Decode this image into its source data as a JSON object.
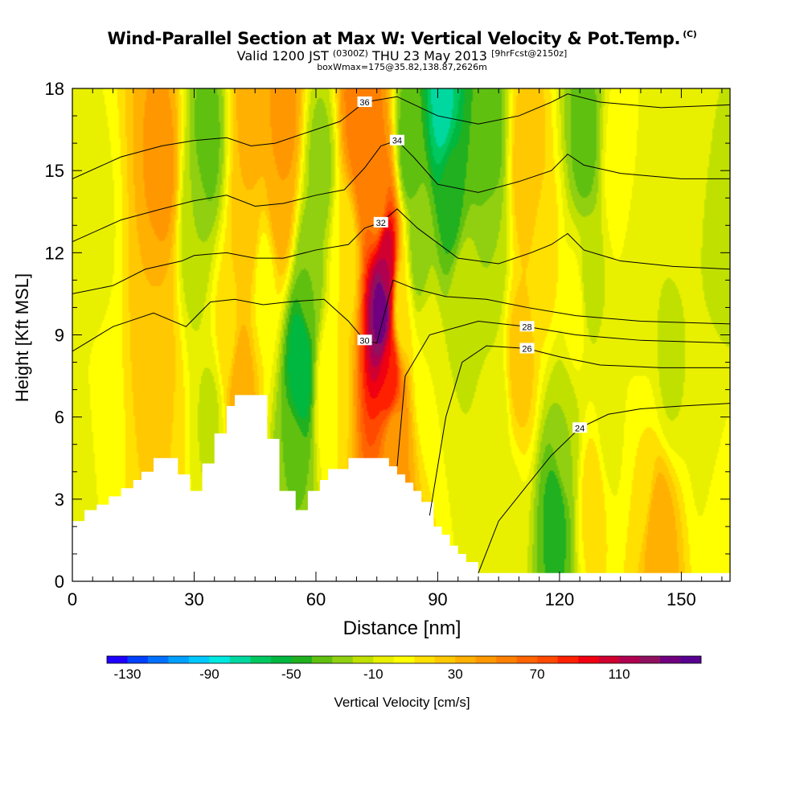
{
  "title": "Wind-Parallel Section at Max W: Vertical Velocity & Pot.Temp.",
  "title_mark": "(C)",
  "subtitle_pre": "Valid 1200 JST",
  "subtitle_small": "(0300Z)",
  "subtitle_mid": "THU 23 May 2013",
  "subtitle_tail": "[9hrFcst@2150z]",
  "subtitle2": "boxWmax=175@35.82,138.87,2626m",
  "chart_data": {
    "type": "heatmap",
    "xlabel": "Distance [nm]",
    "ylabel": "Height [Kft MSL]",
    "xlim": [
      0,
      162
    ],
    "ylim": [
      0,
      18
    ],
    "x_ticks": [
      0,
      30,
      60,
      90,
      120,
      150
    ],
    "y_ticks": [
      0,
      3,
      6,
      9,
      12,
      15,
      18
    ],
    "colorbar": {
      "label": "Vertical Velocity [cm/s]",
      "min": -140,
      "max": 150,
      "step": 10,
      "tick_labels": [
        -130,
        -90,
        -50,
        -10,
        30,
        70,
        110
      ],
      "colors": [
        "#1f00ff",
        "#0040ff",
        "#0070ff",
        "#00a0ff",
        "#00c8ff",
        "#00e8e0",
        "#00d8a0",
        "#00c860",
        "#00b840",
        "#20b020",
        "#60c010",
        "#90d010",
        "#c0e000",
        "#e8f000",
        "#ffff00",
        "#ffe000",
        "#ffc800",
        "#ffb000",
        "#ff9800",
        "#ff8000",
        "#ff6400",
        "#ff4800",
        "#ff2000",
        "#f00010",
        "#d00030",
        "#b00050",
        "#901060",
        "#700080",
        "#580090"
      ]
    },
    "vertical_velocity_cells": [
      {
        "x": 2,
        "z": 4,
        "w": -8
      },
      {
        "x": 5,
        "z": 12,
        "w": -5
      },
      {
        "x": 8,
        "z": 6,
        "w": 8
      },
      {
        "x": 20,
        "z": 9,
        "w": 30
      },
      {
        "x": 22,
        "z": 15,
        "w": 45
      },
      {
        "x": 22,
        "z": 6,
        "w": 20
      },
      {
        "x": 30,
        "z": 13,
        "w": -20
      },
      {
        "x": 33,
        "z": 16,
        "w": -35
      },
      {
        "x": 34,
        "z": 6,
        "w": -12
      },
      {
        "x": 38,
        "z": 9,
        "w": 15
      },
      {
        "x": 41,
        "z": 7,
        "w": 40
      },
      {
        "x": 43,
        "z": 13,
        "w": 30
      },
      {
        "x": 44,
        "z": 17,
        "w": 35
      },
      {
        "x": 47,
        "z": 11,
        "w": 5
      },
      {
        "x": 51,
        "z": 14,
        "w": 40
      },
      {
        "x": 52,
        "z": 17,
        "w": 45
      },
      {
        "x": 54,
        "z": 4,
        "w": -30
      },
      {
        "x": 56,
        "z": 8,
        "w": -60
      },
      {
        "x": 58,
        "z": 11,
        "w": -30
      },
      {
        "x": 61,
        "z": 15,
        "w": -25
      },
      {
        "x": 63,
        "z": 7,
        "w": 10
      },
      {
        "x": 67,
        "z": 12,
        "w": 10
      },
      {
        "x": 70,
        "z": 17,
        "w": 55
      },
      {
        "x": 72,
        "z": 15.5,
        "w": 60
      },
      {
        "x": 75,
        "z": 14,
        "w": 50
      },
      {
        "x": 76,
        "z": 10,
        "w": 140
      },
      {
        "x": 77,
        "z": 11.5,
        "w": 110
      },
      {
        "x": 78,
        "z": 7.5,
        "w": 90
      },
      {
        "x": 79,
        "z": 5,
        "w": 40
      },
      {
        "x": 81,
        "z": 10,
        "w": 10
      },
      {
        "x": 83,
        "z": 16,
        "w": -40
      },
      {
        "x": 85,
        "z": 12,
        "w": -25
      },
      {
        "x": 87,
        "z": 8,
        "w": 0
      },
      {
        "x": 91,
        "z": 17.5,
        "w": -75
      },
      {
        "x": 93,
        "z": 14,
        "w": -45
      },
      {
        "x": 96,
        "z": 10,
        "w": -10
      },
      {
        "x": 102,
        "z": 16,
        "w": -40
      },
      {
        "x": 103,
        "z": 12,
        "w": -20
      },
      {
        "x": 104,
        "z": 6,
        "w": -8
      },
      {
        "x": 107,
        "z": 2,
        "w": -5
      },
      {
        "x": 110,
        "z": 8,
        "w": 25
      },
      {
        "x": 112,
        "z": 15,
        "w": 30
      },
      {
        "x": 116,
        "z": 12,
        "w": 15
      },
      {
        "x": 119,
        "z": 2.5,
        "w": -45
      },
      {
        "x": 121,
        "z": 5,
        "w": -20
      },
      {
        "x": 124,
        "z": 10,
        "w": 5
      },
      {
        "x": 126,
        "z": 16,
        "w": -35
      },
      {
        "x": 127,
        "z": 11,
        "w": -15
      },
      {
        "x": 128,
        "z": 3,
        "w": 15
      },
      {
        "x": 132,
        "z": 6,
        "w": -5
      },
      {
        "x": 134,
        "z": 15,
        "w": 5
      },
      {
        "x": 140,
        "z": 4,
        "w": 10
      },
      {
        "x": 140,
        "z": 11,
        "w": -10
      },
      {
        "x": 144,
        "z": 1.5,
        "w": 40
      },
      {
        "x": 147,
        "z": 8,
        "w": -12
      },
      {
        "x": 150,
        "z": 16,
        "w": 0
      },
      {
        "x": 157,
        "z": 6,
        "w": -5
      },
      {
        "x": 160,
        "z": 12,
        "w": -15
      },
      {
        "x": 160,
        "z": 3,
        "w": 5
      }
    ],
    "terrain_kft": [
      {
        "x": 0,
        "h": 2.2
      },
      {
        "x": 3,
        "h": 2.6
      },
      {
        "x": 6,
        "h": 2.8
      },
      {
        "x": 9,
        "h": 3.1
      },
      {
        "x": 12,
        "h": 3.4
      },
      {
        "x": 15,
        "h": 3.7
      },
      {
        "x": 17,
        "h": 4.0
      },
      {
        "x": 20,
        "h": 4.5
      },
      {
        "x": 26,
        "h": 3.9
      },
      {
        "x": 29,
        "h": 3.3
      },
      {
        "x": 32,
        "h": 4.3
      },
      {
        "x": 35,
        "h": 5.4
      },
      {
        "x": 38,
        "h": 6.4
      },
      {
        "x": 40,
        "h": 6.8
      },
      {
        "x": 48,
        "h": 5.2
      },
      {
        "x": 51,
        "h": 3.3
      },
      {
        "x": 55,
        "h": 2.6
      },
      {
        "x": 58,
        "h": 3.3
      },
      {
        "x": 61,
        "h": 3.7
      },
      {
        "x": 63,
        "h": 4.1
      },
      {
        "x": 68,
        "h": 4.5
      },
      {
        "x": 78,
        "h": 4.2
      },
      {
        "x": 80,
        "h": 3.9
      },
      {
        "x": 82,
        "h": 3.6
      },
      {
        "x": 84,
        "h": 3.3
      },
      {
        "x": 86,
        "h": 2.9
      },
      {
        "x": 89,
        "h": 2.0
      },
      {
        "x": 91,
        "h": 1.7
      },
      {
        "x": 93,
        "h": 1.3
      },
      {
        "x": 95,
        "h": 1.0
      },
      {
        "x": 97,
        "h": 0.7
      },
      {
        "x": 100,
        "h": 0.3
      },
      {
        "x": 162,
        "h": 0.3
      }
    ],
    "pot_temp_contours": {
      "units_note": "",
      "lines": [
        {
          "label": "24",
          "points": [
            [
              100,
              0.3
            ],
            [
              105,
              2.2
            ],
            [
              112,
              3.5
            ],
            [
              118,
              4.6
            ],
            [
              125,
              5.6
            ],
            [
              132,
              6.1
            ],
            [
              140,
              6.3
            ],
            [
              150,
              6.4
            ],
            [
              162,
              6.5
            ]
          ]
        },
        {
          "label": "26",
          "points": [
            [
              88,
              2.4
            ],
            [
              92,
              6
            ],
            [
              96,
              8
            ],
            [
              102,
              8.6
            ],
            [
              112,
              8.5
            ],
            [
              120,
              8.2
            ],
            [
              130,
              7.9
            ],
            [
              145,
              7.8
            ],
            [
              162,
              7.8
            ]
          ]
        },
        {
          "label": "28",
          "points": [
            [
              80,
              4.2
            ],
            [
              82,
              7.5
            ],
            [
              88,
              9
            ],
            [
              100,
              9.5
            ],
            [
              112,
              9.3
            ],
            [
              124,
              9.0
            ],
            [
              140,
              8.8
            ],
            [
              162,
              8.7
            ]
          ]
        },
        {
          "label": "30",
          "points": [
            [
              0,
              8.4
            ],
            [
              10,
              9.3
            ],
            [
              20,
              9.8
            ],
            [
              28,
              9.3
            ],
            [
              34,
              10.2
            ],
            [
              40,
              10.3
            ],
            [
              47,
              10.1
            ],
            [
              53,
              10.2
            ],
            [
              62,
              10.3
            ],
            [
              68,
              9.5
            ],
            [
              72,
              8.8
            ],
            [
              75,
              8.7
            ],
            [
              79,
              11
            ],
            [
              84,
              10.7
            ],
            [
              92,
              10.4
            ],
            [
              102,
              10.3
            ],
            [
              112,
              10.0
            ],
            [
              124,
              9.7
            ],
            [
              140,
              9.5
            ],
            [
              162,
              9.4
            ]
          ]
        },
        {
          "label": "32",
          "points": [
            [
              0,
              10.5
            ],
            [
              10,
              10.8
            ],
            [
              18,
              11.4
            ],
            [
              27,
              11.7
            ],
            [
              30,
              11.9
            ],
            [
              38,
              12.0
            ],
            [
              45,
              11.8
            ],
            [
              52,
              11.8
            ],
            [
              60,
              12.1
            ],
            [
              68,
              12.3
            ],
            [
              72,
              12.9
            ],
            [
              76,
              13.1
            ],
            [
              80,
              13.6
            ],
            [
              85,
              12.9
            ],
            [
              95,
              11.8
            ],
            [
              105,
              11.6
            ],
            [
              113,
              12.0
            ],
            [
              118,
              12.3
            ],
            [
              122,
              12.7
            ],
            [
              126,
              12.1
            ],
            [
              135,
              11.7
            ],
            [
              148,
              11.5
            ],
            [
              162,
              11.4
            ]
          ]
        },
        {
          "label": "34",
          "points": [
            [
              0,
              12.4
            ],
            [
              12,
              13.2
            ],
            [
              22,
              13.6
            ],
            [
              30,
              13.9
            ],
            [
              38,
              14.1
            ],
            [
              45,
              13.7
            ],
            [
              52,
              13.8
            ],
            [
              60,
              14.1
            ],
            [
              67,
              14.3
            ],
            [
              72,
              15.1
            ],
            [
              76,
              15.9
            ],
            [
              80,
              16.1
            ],
            [
              84,
              15.5
            ],
            [
              90,
              14.5
            ],
            [
              100,
              14.2
            ],
            [
              110,
              14.6
            ],
            [
              118,
              15.0
            ],
            [
              122,
              15.6
            ],
            [
              126,
              15.2
            ],
            [
              135,
              14.9
            ],
            [
              150,
              14.7
            ],
            [
              162,
              14.7
            ]
          ]
        },
        {
          "label": "36",
          "points": [
            [
              0,
              14.7
            ],
            [
              12,
              15.5
            ],
            [
              22,
              15.9
            ],
            [
              30,
              16.1
            ],
            [
              38,
              16.2
            ],
            [
              44,
              15.9
            ],
            [
              50,
              16.0
            ],
            [
              58,
              16.4
            ],
            [
              66,
              16.8
            ],
            [
              72,
              17.5
            ],
            [
              80,
              17.7
            ],
            [
              90,
              17.0
            ],
            [
              100,
              16.7
            ],
            [
              110,
              17.0
            ],
            [
              118,
              17.5
            ],
            [
              122,
              17.8
            ],
            [
              130,
              17.5
            ],
            [
              145,
              17.3
            ],
            [
              162,
              17.4
            ]
          ]
        }
      ]
    }
  }
}
